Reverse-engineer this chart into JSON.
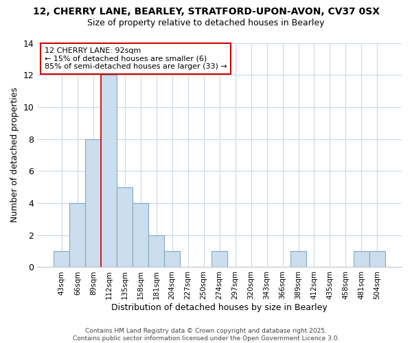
{
  "title1": "12, CHERRY LANE, BEARLEY, STRATFORD-UPON-AVON, CV37 0SX",
  "title2": "Size of property relative to detached houses in Bearley",
  "xlabel": "Distribution of detached houses by size in Bearley",
  "ylabel": "Number of detached properties",
  "categories": [
    "43sqm",
    "66sqm",
    "89sqm",
    "112sqm",
    "135sqm",
    "158sqm",
    "181sqm",
    "204sqm",
    "227sqm",
    "250sqm",
    "274sqm",
    "297sqm",
    "320sqm",
    "343sqm",
    "366sqm",
    "389sqm",
    "412sqm",
    "435sqm",
    "458sqm",
    "481sqm",
    "504sqm"
  ],
  "values": [
    1,
    4,
    8,
    12,
    5,
    4,
    2,
    1,
    0,
    0,
    1,
    0,
    0,
    0,
    0,
    1,
    0,
    0,
    0,
    1,
    1
  ],
  "bar_color": "#ccdded",
  "bar_edgecolor": "#7aaac8",
  "property_line_color": "#cc0000",
  "annotation_text": "12 CHERRY LANE: 92sqm\n← 15% of detached houses are smaller (6)\n85% of semi-detached houses are larger (33) →",
  "annotation_box_facecolor": "#ffffff",
  "annotation_box_edgecolor": "#cc0000",
  "ylim": [
    0,
    14
  ],
  "yticks": [
    0,
    2,
    4,
    6,
    8,
    10,
    12,
    14
  ],
  "plot_bg_color": "#ffffff",
  "fig_bg_color": "#ffffff",
  "grid_color": "#c8d8e8",
  "footer_text": "Contains HM Land Registry data © Crown copyright and database right 2025.\nContains public sector information licensed under the Open Government Licence 3.0."
}
